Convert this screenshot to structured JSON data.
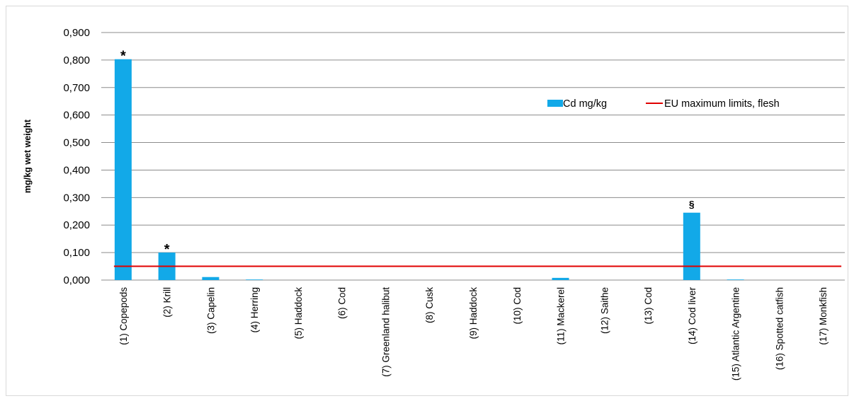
{
  "chart_data": {
    "type": "bar",
    "title": "",
    "xlabel": "",
    "ylabel": "mg/kg wet weight",
    "ylim": [
      0,
      0.9
    ],
    "yticks": [
      "0,000",
      "0,100",
      "0,200",
      "0,300",
      "0,400",
      "0,500",
      "0,600",
      "0,700",
      "0,800",
      "0,900"
    ],
    "grid": true,
    "legend_position": "right",
    "categories": [
      "(1) Copepods",
      "(2) Krill",
      "(3) Capelin",
      "(4) Herring",
      "(5) Haddock",
      "(6) Cod",
      "(7) Greenland halibut",
      "(8) Cusk",
      "(9) Haddock",
      "(10) Cod",
      "(11) Mackerel",
      "(12) Saithe",
      "(13) Cod",
      "(14) Cod liver",
      "(15) Atlantic Argentine",
      "(16) Spotted catfish",
      "(17) Monkfish"
    ],
    "series": [
      {
        "name": "Cd mg/kg",
        "type": "bar",
        "color": "#12a9e8",
        "values": [
          0.803,
          0.1,
          0.011,
          0.002,
          0.0,
          0.0,
          0.0,
          0.0,
          0.0,
          0.0,
          0.008,
          0.0,
          0.0,
          0.245,
          0.002,
          0.0,
          0.0
        ]
      },
      {
        "name": "EU maximum limits, flesh",
        "type": "line",
        "color": "#e00000",
        "values": [
          0.05,
          0.05,
          0.05,
          0.05,
          0.05,
          0.05,
          0.05,
          0.05,
          0.05,
          0.05,
          0.05,
          0.05,
          0.05,
          0.05,
          0.05,
          0.05,
          0.05
        ]
      }
    ],
    "annotations": [
      {
        "category_index": 0,
        "text": "*"
      },
      {
        "category_index": 1,
        "text": "*"
      },
      {
        "category_index": 13,
        "text": "§"
      }
    ]
  }
}
